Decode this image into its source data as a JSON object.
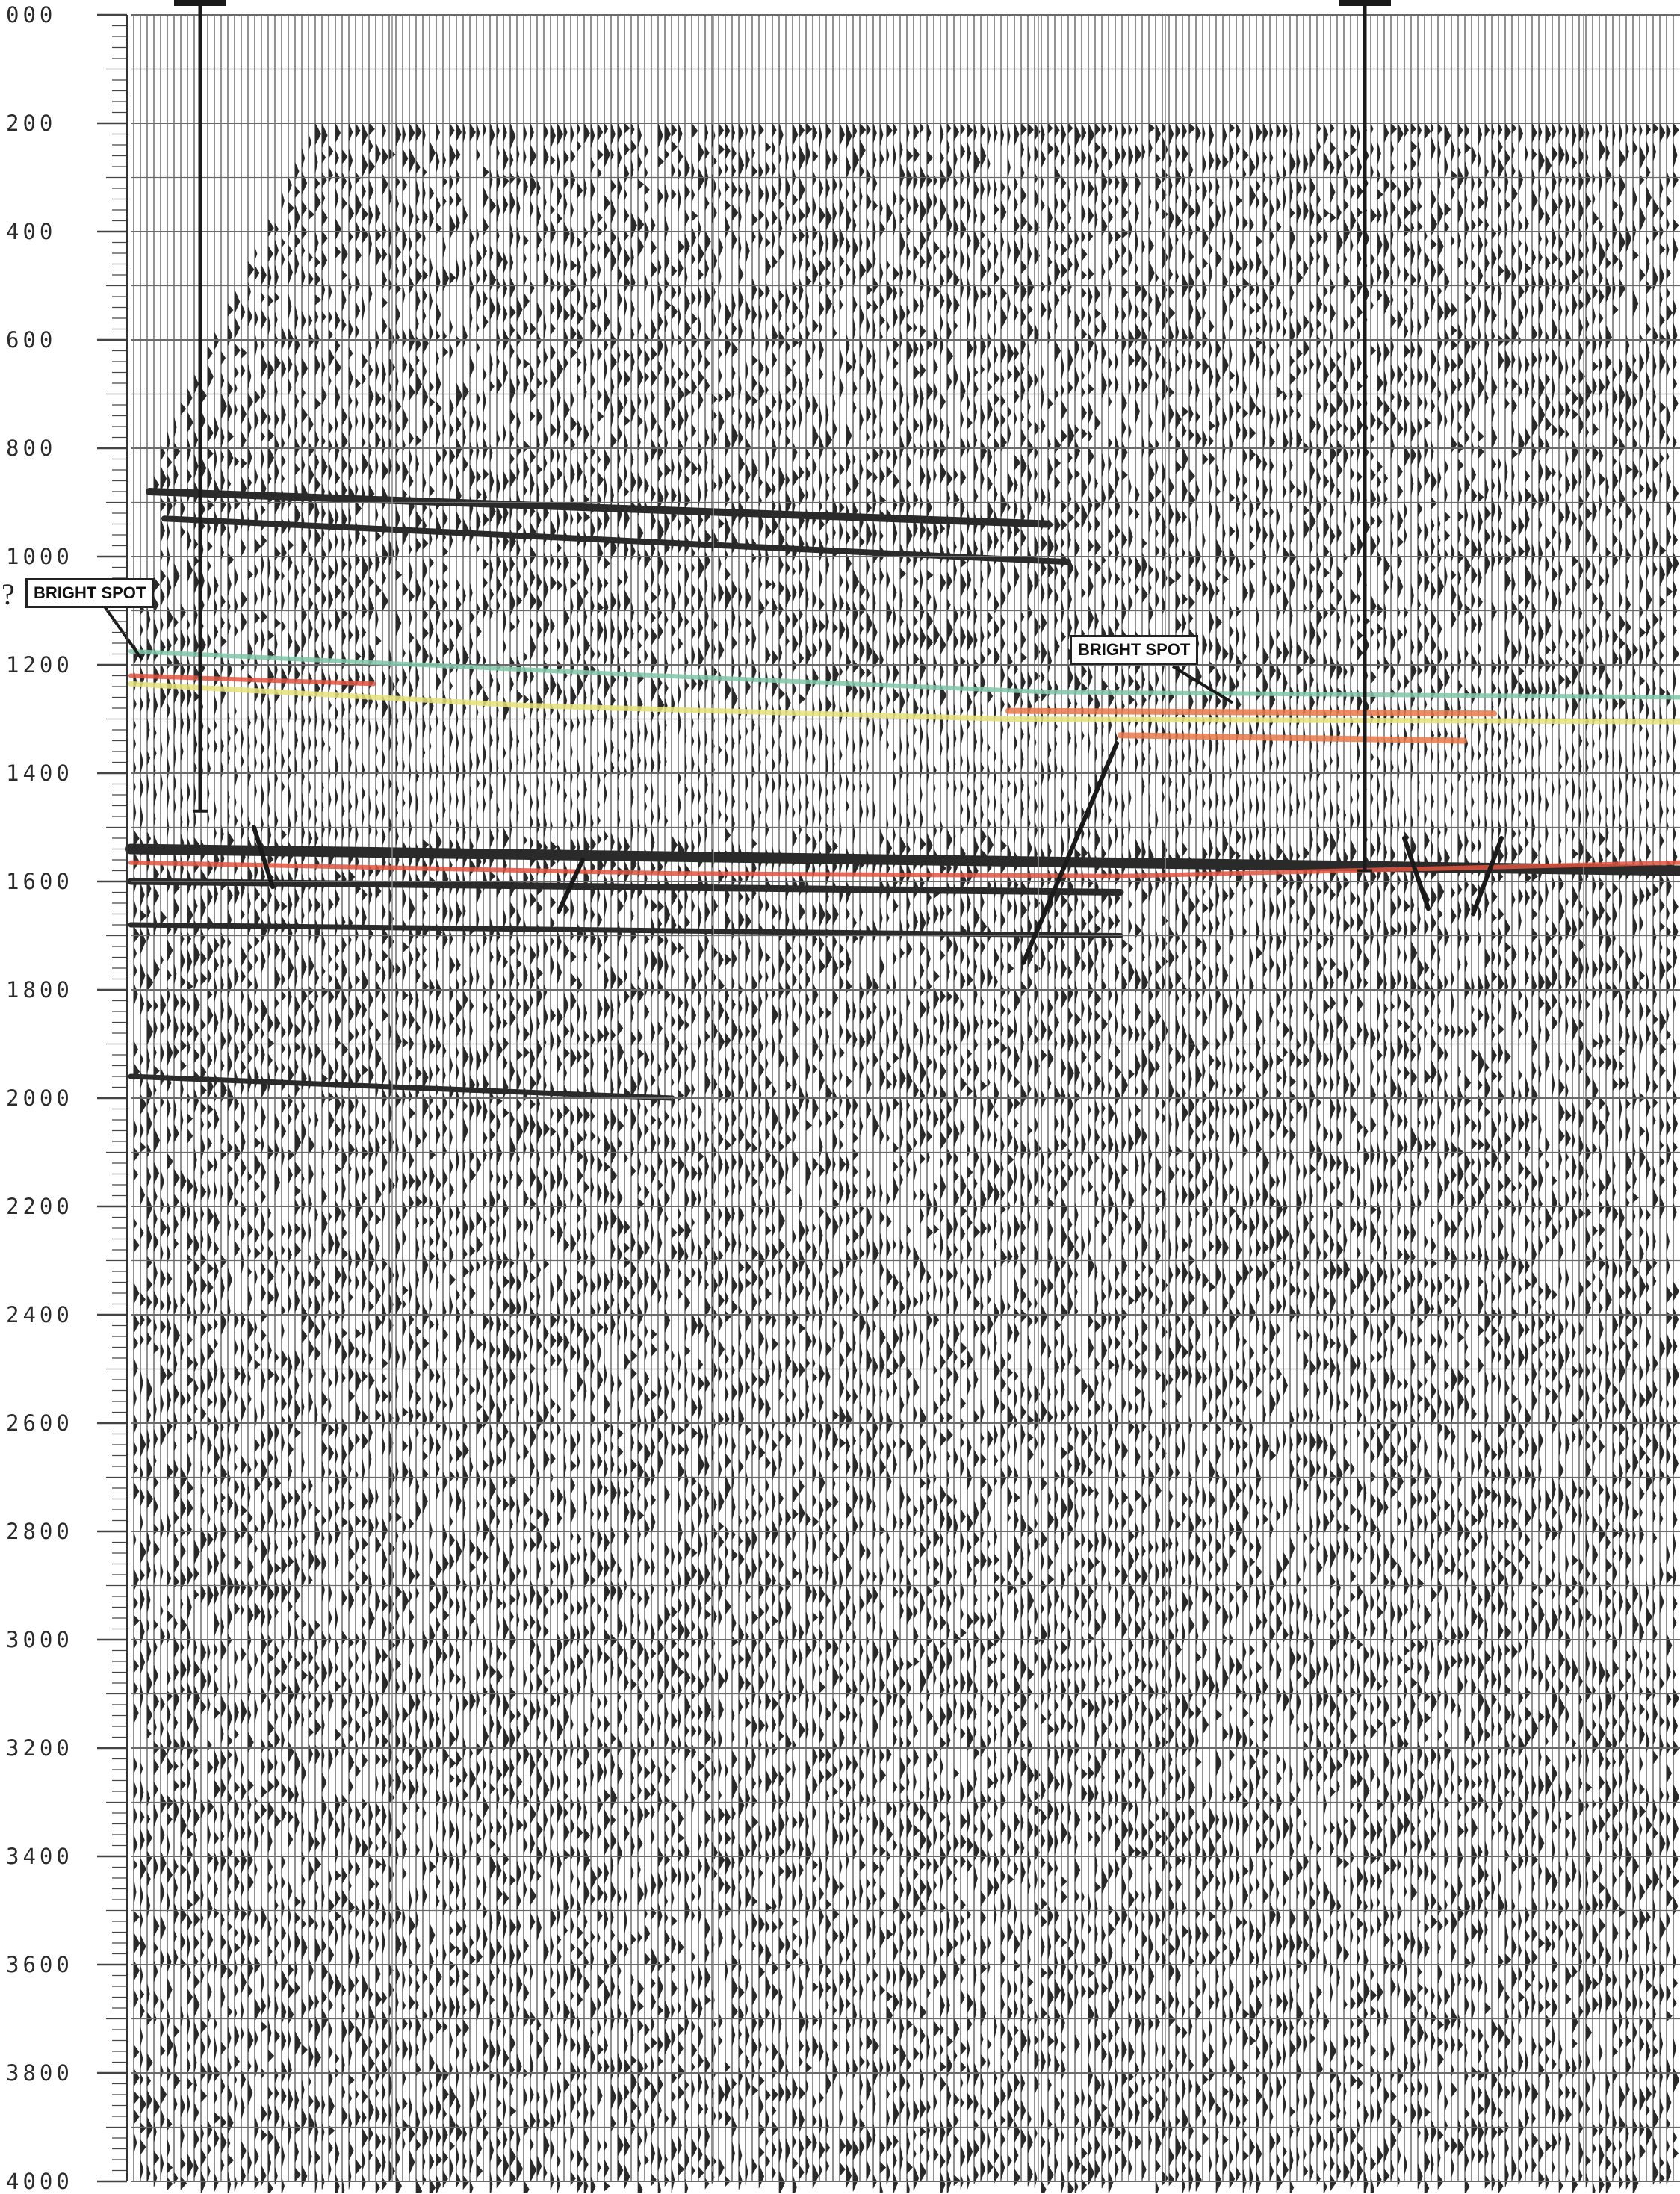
{
  "time_axis": {
    "labels": [
      "000",
      "200",
      "400",
      "600",
      "800",
      "1000",
      "1200",
      "1400",
      "1600",
      "1800",
      "2000",
      "2200",
      "2400",
      "2600",
      "2800",
      "3000",
      "3200",
      "3400",
      "3600",
      "3800",
      "4000"
    ]
  },
  "annotations": {
    "bright_spot_left": "BRIGHT SPOT",
    "bright_spot_right": "BRIGHT SPOT",
    "question_mark": "?"
  },
  "colors": {
    "paper": "#ffffff",
    "ink": "#2a2a2a",
    "horizon_green": "#7fc7a8",
    "horizon_yellow": "#e6e27a",
    "horizon_red": "#e2533f",
    "horizon_orange": "#e8784a"
  }
}
